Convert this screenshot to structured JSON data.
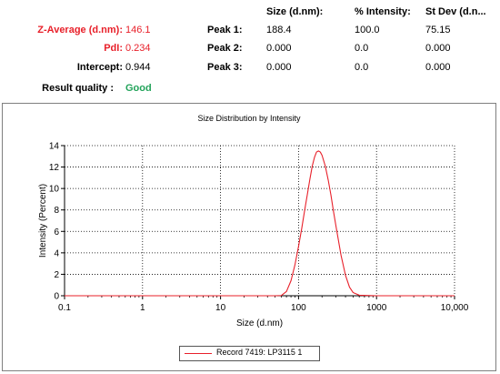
{
  "summary": {
    "z_average": {
      "label": "Z-Average (d.nm):",
      "value": "146.1"
    },
    "pdi": {
      "label": "PdI:",
      "value": "0.234"
    },
    "intercept": {
      "label": "Intercept:",
      "value": "0.944"
    },
    "quality": {
      "label": "Result quality :",
      "value": "Good"
    }
  },
  "peaks": {
    "headers": [
      "Size (d.nm):",
      "% Intensity:",
      "St Dev (d.n..."
    ],
    "rows": [
      {
        "label": "Peak 1:",
        "size": "188.4",
        "intensity": "100.0",
        "stdev": "75.15"
      },
      {
        "label": "Peak 2:",
        "size": "0.000",
        "intensity": "0.0",
        "stdev": "0.000"
      },
      {
        "label": "Peak 3:",
        "size": "0.000",
        "intensity": "0.0",
        "stdev": "0.000"
      }
    ]
  },
  "colors": {
    "series": "#e8202a",
    "ok": "#22a35a",
    "label_red": "#e8202a"
  },
  "chart_data": {
    "type": "line",
    "title": "Size Distribution by Intensity",
    "xlabel": "Size (d.nm)",
    "ylabel": "Intensity (Percent)",
    "xscale": "log",
    "xlim": [
      0.1,
      10000
    ],
    "ylim": [
      0,
      14
    ],
    "x_ticks": [
      0.1,
      1,
      10,
      100,
      1000,
      10000
    ],
    "x_tick_labels": [
      "0.1",
      "1",
      "10",
      "100",
      "1000",
      "10,000"
    ],
    "y_ticks": [
      0,
      2,
      4,
      6,
      8,
      10,
      12,
      14
    ],
    "y_tick_labels": [
      "0",
      "2",
      "4",
      "6",
      "8",
      "10",
      "12",
      "14"
    ],
    "grid": true,
    "legend_position": "bottom-center",
    "series": [
      {
        "name": "Record 7419: LP3115 1",
        "x": [
          0.1,
          1,
          10,
          50,
          60,
          70,
          80,
          90,
          100,
          110,
          120,
          130,
          140,
          150,
          160,
          170,
          180,
          190,
          200,
          220,
          240,
          260,
          280,
          300,
          350,
          400,
          450,
          500,
          600,
          1000,
          10000
        ],
        "y": [
          0,
          0,
          0,
          0,
          0.02,
          0.4,
          1.4,
          2.9,
          4.6,
          6.3,
          8.0,
          9.5,
          10.9,
          12.1,
          12.9,
          13.4,
          13.5,
          13.4,
          13.1,
          12.1,
          10.8,
          9.4,
          7.9,
          6.6,
          3.8,
          1.9,
          0.8,
          0.3,
          0.05,
          0,
          0
        ]
      }
    ]
  }
}
